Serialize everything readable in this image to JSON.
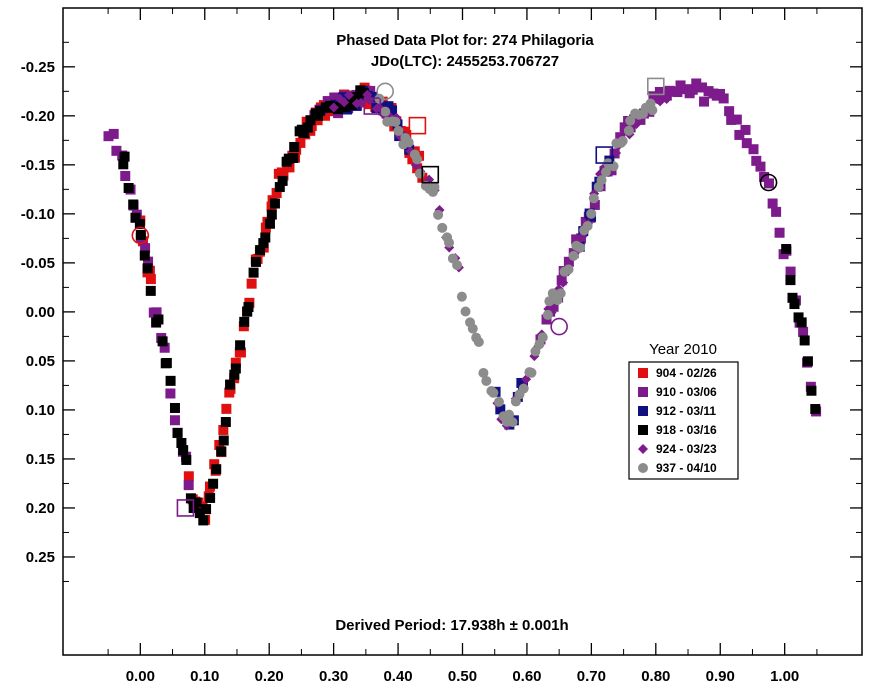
{
  "chart_data": {
    "type": "scatter",
    "title": "Phased Data Plot for: 274 Philagoria",
    "subtitle": "JDo(LTC): 2455253.706727",
    "annotation": "Derived Period: 17.938h  ± 0.001h",
    "xlabel": "",
    "ylabel": "",
    "xlim": [
      -0.12,
      1.12
    ],
    "ylim": [
      -0.31,
      0.35
    ],
    "y_reversed": true,
    "x_ticks": [
      0.0,
      0.1,
      0.2,
      0.3,
      0.4,
      0.5,
      0.6,
      0.7,
      0.8,
      0.9,
      1.0
    ],
    "x_tick_labels": [
      "0.00",
      "0.10",
      "0.20",
      "0.30",
      "0.40",
      "0.50",
      "0.60",
      "0.70",
      "0.80",
      "0.90",
      "1.00"
    ],
    "y_ticks": [
      -0.25,
      -0.2,
      -0.15,
      -0.1,
      -0.05,
      0.0,
      0.05,
      0.1,
      0.15,
      0.2,
      0.25
    ],
    "y_tick_labels": [
      "-0.25",
      "-0.20",
      "-0.15",
      "-0.10",
      "-0.05",
      "0.00",
      "0.05",
      "0.10",
      "0.15",
      "0.20",
      "0.25"
    ],
    "grid": false,
    "legend_title": "Year 2010",
    "legend_position": "right",
    "curve_model": {
      "description": "lightcurve shape used to place points (x in phase, y in magnitude)",
      "knots": [
        [
          -0.05,
          -0.182
        ],
        [
          -0.03,
          -0.16
        ],
        [
          0.0,
          -0.085
        ],
        [
          0.03,
          0.02
        ],
        [
          0.06,
          0.12
        ],
        [
          0.085,
          0.2
        ],
        [
          0.1,
          0.205
        ],
        [
          0.12,
          0.15
        ],
        [
          0.15,
          0.05
        ],
        [
          0.18,
          -0.05
        ],
        [
          0.22,
          -0.14
        ],
        [
          0.26,
          -0.19
        ],
        [
          0.3,
          -0.21
        ],
        [
          0.35,
          -0.22
        ],
        [
          0.39,
          -0.2
        ],
        [
          0.42,
          -0.165
        ],
        [
          0.45,
          -0.13
        ],
        [
          0.48,
          -0.07
        ],
        [
          0.51,
          0.0
        ],
        [
          0.54,
          0.07
        ],
        [
          0.57,
          0.115
        ],
        [
          0.6,
          0.07
        ],
        [
          0.64,
          -0.01
        ],
        [
          0.68,
          -0.07
        ],
        [
          0.72,
          -0.14
        ],
        [
          0.76,
          -0.19
        ],
        [
          0.8,
          -0.215
        ],
        [
          0.85,
          -0.23
        ],
        [
          0.9,
          -0.215
        ],
        [
          0.95,
          -0.17
        ],
        [
          0.98,
          -0.12
        ],
        [
          1.0,
          -0.06
        ],
        [
          1.02,
          0.0
        ],
        [
          1.05,
          0.095
        ]
      ]
    },
    "series": [
      {
        "name": "904 - 02/26",
        "marker": "square",
        "color": "#e01010",
        "ranges": [
          [
            0.0,
            0.02
          ],
          [
            0.075,
            0.44
          ]
        ],
        "count": 95,
        "highlights": [
          {
            "x": 0.0,
            "y": -0.078,
            "shape": "circle"
          },
          {
            "x": 0.43,
            "y": -0.19,
            "shape": "square"
          }
        ]
      },
      {
        "name": "910 - 03/06",
        "marker": "square",
        "color": "#7d1a8c",
        "ranges": [
          [
            -0.05,
            0.08
          ],
          [
            0.27,
            0.38
          ],
          [
            0.62,
            1.05
          ]
        ],
        "count": 110,
        "highlights": [
          {
            "x": 0.07,
            "y": 0.2,
            "shape": "square"
          }
        ]
      },
      {
        "name": "912 - 03/11",
        "marker": "square",
        "color": "#101080",
        "ranges": [
          [
            0.3,
            0.42
          ],
          [
            0.55,
            0.6
          ],
          [
            0.68,
            0.73
          ]
        ],
        "count": 34,
        "highlights": [
          {
            "x": 0.72,
            "y": -0.16,
            "shape": "square"
          }
        ]
      },
      {
        "name": "918 - 03/16",
        "marker": "square",
        "color": "#000000",
        "ranges": [
          [
            -0.03,
            0.35
          ],
          [
            1.0,
            1.05
          ]
        ],
        "count": 85,
        "highlights": [
          {
            "x": 0.45,
            "y": -0.14,
            "shape": "square"
          },
          {
            "x": 0.975,
            "y": -0.132,
            "shape": "circle"
          }
        ]
      },
      {
        "name": "924 - 03/23",
        "marker": "diamond",
        "color": "#7d1a8c",
        "ranges": [
          [
            0.3,
            0.5
          ],
          [
            0.55,
            0.82
          ]
        ],
        "count": 60,
        "highlights": [
          {
            "x": 0.36,
            "y": -0.21,
            "shape": "square"
          },
          {
            "x": 0.65,
            "y": 0.015,
            "shape": "circle"
          }
        ]
      },
      {
        "name": "937 - 04/10",
        "marker": "circle",
        "color": "#8c8c8c",
        "ranges": [
          [
            0.37,
            0.8
          ]
        ],
        "count": 75,
        "highlights": [
          {
            "x": 0.38,
            "y": -0.225,
            "shape": "circle"
          },
          {
            "x": 0.8,
            "y": -0.23,
            "shape": "square"
          }
        ]
      }
    ]
  }
}
